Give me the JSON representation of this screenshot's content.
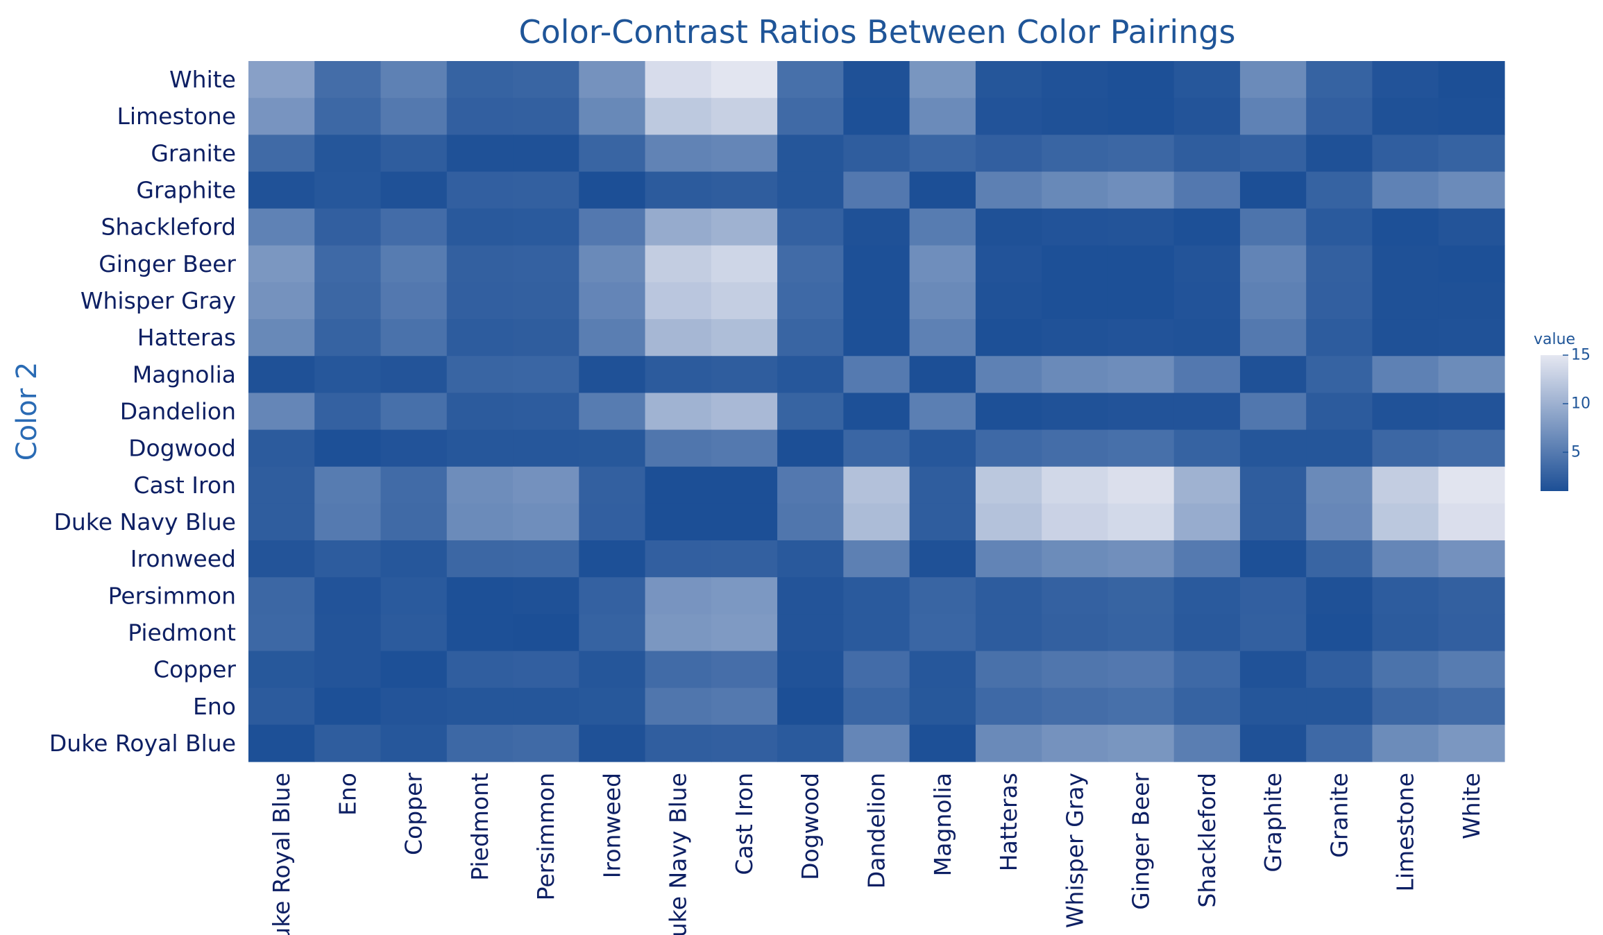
{
  "chart_data": {
    "type": "heatmap",
    "title": "Color-Contrast Ratios Between Color Pairings",
    "xlabel": "",
    "ylabel": "Color 2",
    "colorbar": {
      "title": "value",
      "ticks": [
        5,
        10,
        15
      ],
      "range": [
        1,
        15
      ]
    },
    "colorscale": [
      "#1c4f96",
      "#e5e7f1"
    ],
    "x_categories": [
      "Duke Royal Blue",
      "Eno",
      "Copper",
      "Piedmont",
      "Persimmon",
      "Ironweed",
      "Duke Navy Blue",
      "Cast Iron",
      "Dogwood",
      "Dandelion",
      "Magnolia",
      "Hatteras",
      "Whisper Gray",
      "Ginger Beer",
      "Shackleford",
      "Graphite",
      "Granite",
      "Limestone",
      "White"
    ],
    "y_categories": [
      "White",
      "Limestone",
      "Granite",
      "Graphite",
      "Shackleford",
      "Ginger Beer",
      "Whisper Gray",
      "Hatteras",
      "Magnolia",
      "Dandelion",
      "Dogwood",
      "Cast Iron",
      "Duke Navy Blue",
      "Ironweed",
      "Persimmon",
      "Piedmont",
      "Copper",
      "Eno",
      "Duke Royal Blue"
    ],
    "z": [
      [
        8.5,
        3.8,
        5.6,
        2.8,
        3.0,
        7.2,
        14.0,
        14.8,
        4.0,
        1.2,
        7.5,
        1.6,
        1.3,
        1.1,
        1.7,
        6.5,
        2.8,
        1.4,
        1.0
      ],
      [
        7.4,
        3.3,
        4.9,
        2.5,
        2.6,
        6.3,
        12.2,
        12.9,
        3.5,
        1.1,
        6.5,
        1.4,
        1.2,
        1.1,
        1.5,
        5.7,
        2.5,
        1.2,
        1.1
      ],
      [
        3.5,
        1.6,
        2.3,
        1.2,
        1.2,
        3.0,
        5.8,
        6.1,
        1.6,
        2.3,
        3.1,
        2.5,
        3.0,
        3.2,
        2.3,
        2.7,
        1.2,
        2.4,
        2.8
      ],
      [
        1.3,
        1.7,
        1.2,
        2.5,
        2.6,
        1.0,
        2.1,
        2.3,
        1.6,
        4.8,
        1.0,
        5.5,
        6.3,
        6.8,
        4.8,
        1.0,
        2.8,
        5.7,
        6.5
      ],
      [
        5.7,
        2.5,
        3.7,
        1.9,
        2.0,
        4.8,
        9.5,
        10.1,
        2.7,
        1.2,
        5.1,
        1.2,
        1.4,
        1.5,
        1.1,
        4.4,
        2.0,
        1.1,
        1.5
      ],
      [
        7.6,
        3.4,
        5.1,
        2.6,
        2.7,
        6.4,
        12.6,
        13.4,
        3.6,
        1.1,
        6.8,
        1.4,
        1.1,
        1.1,
        1.5,
        5.9,
        2.6,
        1.2,
        1.1
      ],
      [
        7.2,
        3.2,
        4.8,
        2.5,
        2.6,
        6.0,
        12.0,
        12.7,
        3.4,
        1.1,
        6.4,
        1.3,
        1.1,
        1.1,
        1.4,
        5.6,
        2.5,
        1.2,
        1.2
      ],
      [
        6.3,
        2.8,
        4.2,
        2.2,
        2.3,
        5.3,
        10.6,
        11.2,
        3.0,
        1.1,
        5.6,
        1.1,
        1.3,
        1.4,
        1.3,
        4.9,
        2.2,
        1.2,
        1.3
      ],
      [
        1.2,
        1.7,
        1.5,
        3.0,
        3.1,
        1.2,
        2.1,
        2.3,
        1.7,
        5.0,
        1.0,
        5.6,
        6.4,
        6.7,
        4.8,
        1.2,
        2.8,
        5.6,
        6.6
      ],
      [
        6.1,
        2.7,
        4.0,
        2.1,
        2.2,
        5.1,
        10.2,
        10.8,
        2.9,
        1.1,
        5.4,
        1.1,
        1.3,
        1.4,
        1.4,
        4.7,
        2.1,
        1.3,
        1.4
      ],
      [
        2.1,
        1.1,
        1.4,
        1.7,
        1.7,
        1.8,
        4.6,
        4.9,
        1.0,
        3.1,
        1.7,
        3.4,
        3.8,
        4.0,
        2.8,
        1.6,
        1.6,
        3.2,
        3.6
      ],
      [
        2.3,
        5.1,
        3.6,
        6.7,
        7.1,
        2.6,
        1.0,
        1.0,
        4.8,
        11.5,
        2.3,
        12.1,
        13.6,
        14.3,
        10.1,
        2.3,
        6.4,
        12.6,
        14.7
      ],
      [
        2.3,
        5.0,
        3.5,
        6.5,
        6.8,
        2.5,
        1.0,
        1.0,
        4.6,
        11.0,
        2.3,
        11.6,
        13.1,
        13.7,
        9.6,
        2.3,
        6.2,
        12.1,
        14.2
      ],
      [
        1.5,
        2.2,
        1.7,
        3.2,
        3.3,
        1.1,
        2.5,
        2.6,
        1.9,
        5.5,
        1.2,
        5.9,
        6.6,
        6.9,
        5.0,
        1.1,
        3.0,
        6.1,
        7.1
      ],
      [
        3.2,
        1.4,
        2.0,
        1.1,
        1.2,
        2.7,
        7.4,
        7.7,
        1.5,
        2.0,
        3.0,
        2.2,
        2.7,
        2.9,
        2.0,
        2.5,
        1.2,
        2.2,
        2.6
      ],
      [
        3.3,
        1.5,
        2.1,
        1.1,
        1.0,
        2.8,
        7.6,
        7.9,
        1.5,
        2.0,
        3.1,
        2.2,
        2.6,
        2.8,
        1.9,
        2.6,
        1.1,
        2.1,
        2.5
      ],
      [
        1.8,
        1.5,
        1.1,
        2.4,
        2.5,
        1.6,
        3.6,
        3.9,
        1.3,
        3.7,
        1.7,
        4.1,
        4.6,
        4.8,
        3.4,
        1.3,
        2.4,
        4.3,
        5.1
      ],
      [
        2.1,
        1.1,
        1.5,
        1.6,
        1.6,
        1.8,
        4.6,
        4.9,
        1.0,
        3.1,
        1.8,
        3.4,
        3.8,
        4.0,
        2.8,
        1.6,
        1.6,
        3.2,
        3.6
      ],
      [
        1.1,
        2.3,
        1.7,
        3.3,
        3.5,
        1.2,
        2.4,
        2.5,
        2.0,
        6.1,
        1.1,
        6.4,
        7.2,
        7.5,
        5.3,
        1.2,
        3.4,
        6.6,
        7.6
      ]
    ]
  }
}
